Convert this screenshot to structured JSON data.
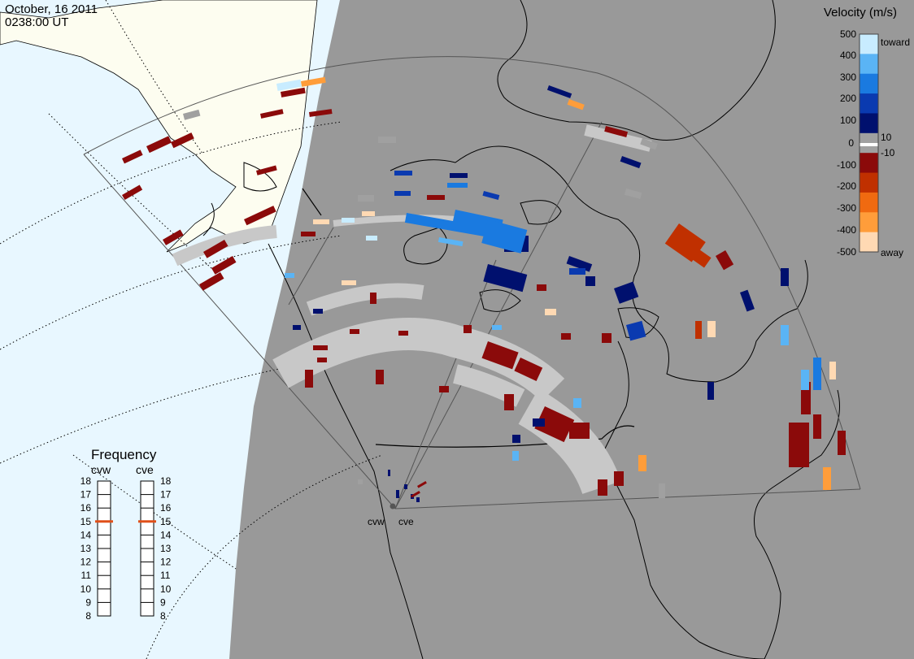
{
  "header": {
    "date": "October, 16 2011",
    "time": "0238:00 UT"
  },
  "colorbar": {
    "title": "Velocity (m/s)",
    "ticks": [
      "500",
      "400",
      "300",
      "200",
      "100",
      "10",
      "0",
      "-10",
      "-100",
      "-200",
      "-300",
      "-400",
      "-500"
    ],
    "toward_label": "toward",
    "away_label": "away",
    "colors": [
      "#ffd9b3",
      "#ff9d3a",
      "#f06a10",
      "#c03000",
      "#8b0a0a",
      "#a0a0a0",
      "#00106e",
      "#0a3ab0",
      "#1a7ae0",
      "#5ab4f5",
      "#c8ecff"
    ]
  },
  "stations": {
    "west": "cvw",
    "east": "cve"
  },
  "frequency": {
    "title": "Frequency",
    "west_label": "cvw",
    "east_label": "cve",
    "levels": [
      "18",
      "17",
      "16",
      "15",
      "14",
      "13",
      "12",
      "11",
      "10",
      "9",
      "8"
    ],
    "west_mhz": 15,
    "east_mhz": 15,
    "marker_color": "#e0501a"
  },
  "map_colors": {
    "night": "#999999",
    "day_ocean": "#e8f7ff",
    "day_land": "#fdfdf0",
    "ground_scatter": "#c8c8c8"
  }
}
